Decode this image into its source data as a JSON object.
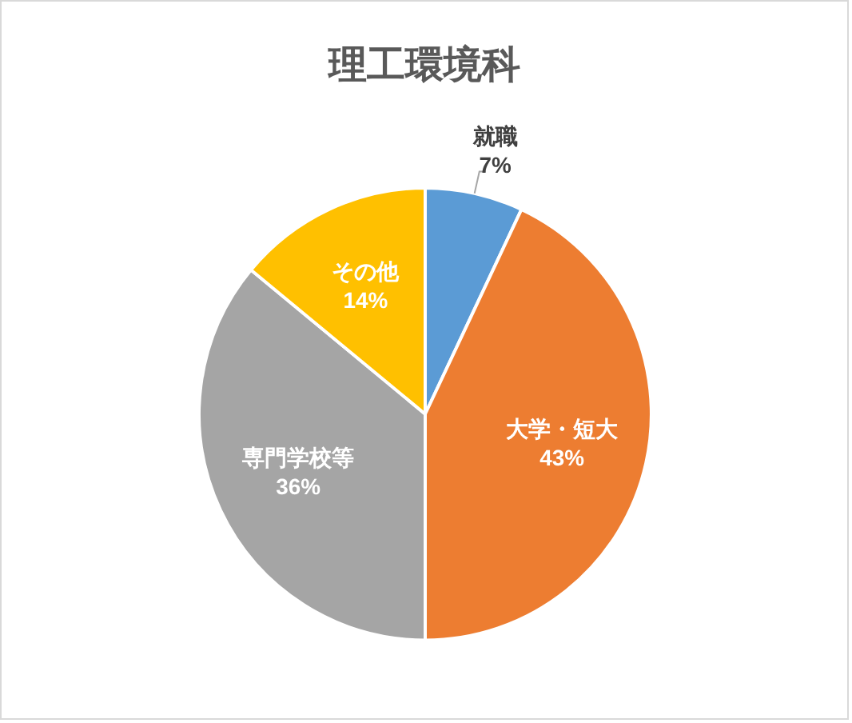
{
  "chart_data": {
    "type": "pie",
    "title": "理工環境科",
    "categories": [
      "就職",
      "大学・短大",
      "専門学校等",
      "その他"
    ],
    "values": [
      7,
      43,
      36,
      14
    ],
    "value_labels": [
      "7%",
      "43%",
      "36%",
      "14%"
    ],
    "colors": [
      "#5b9bd5",
      "#ed7d31",
      "#a5a5a5",
      "#ffc000"
    ],
    "legend": false
  }
}
